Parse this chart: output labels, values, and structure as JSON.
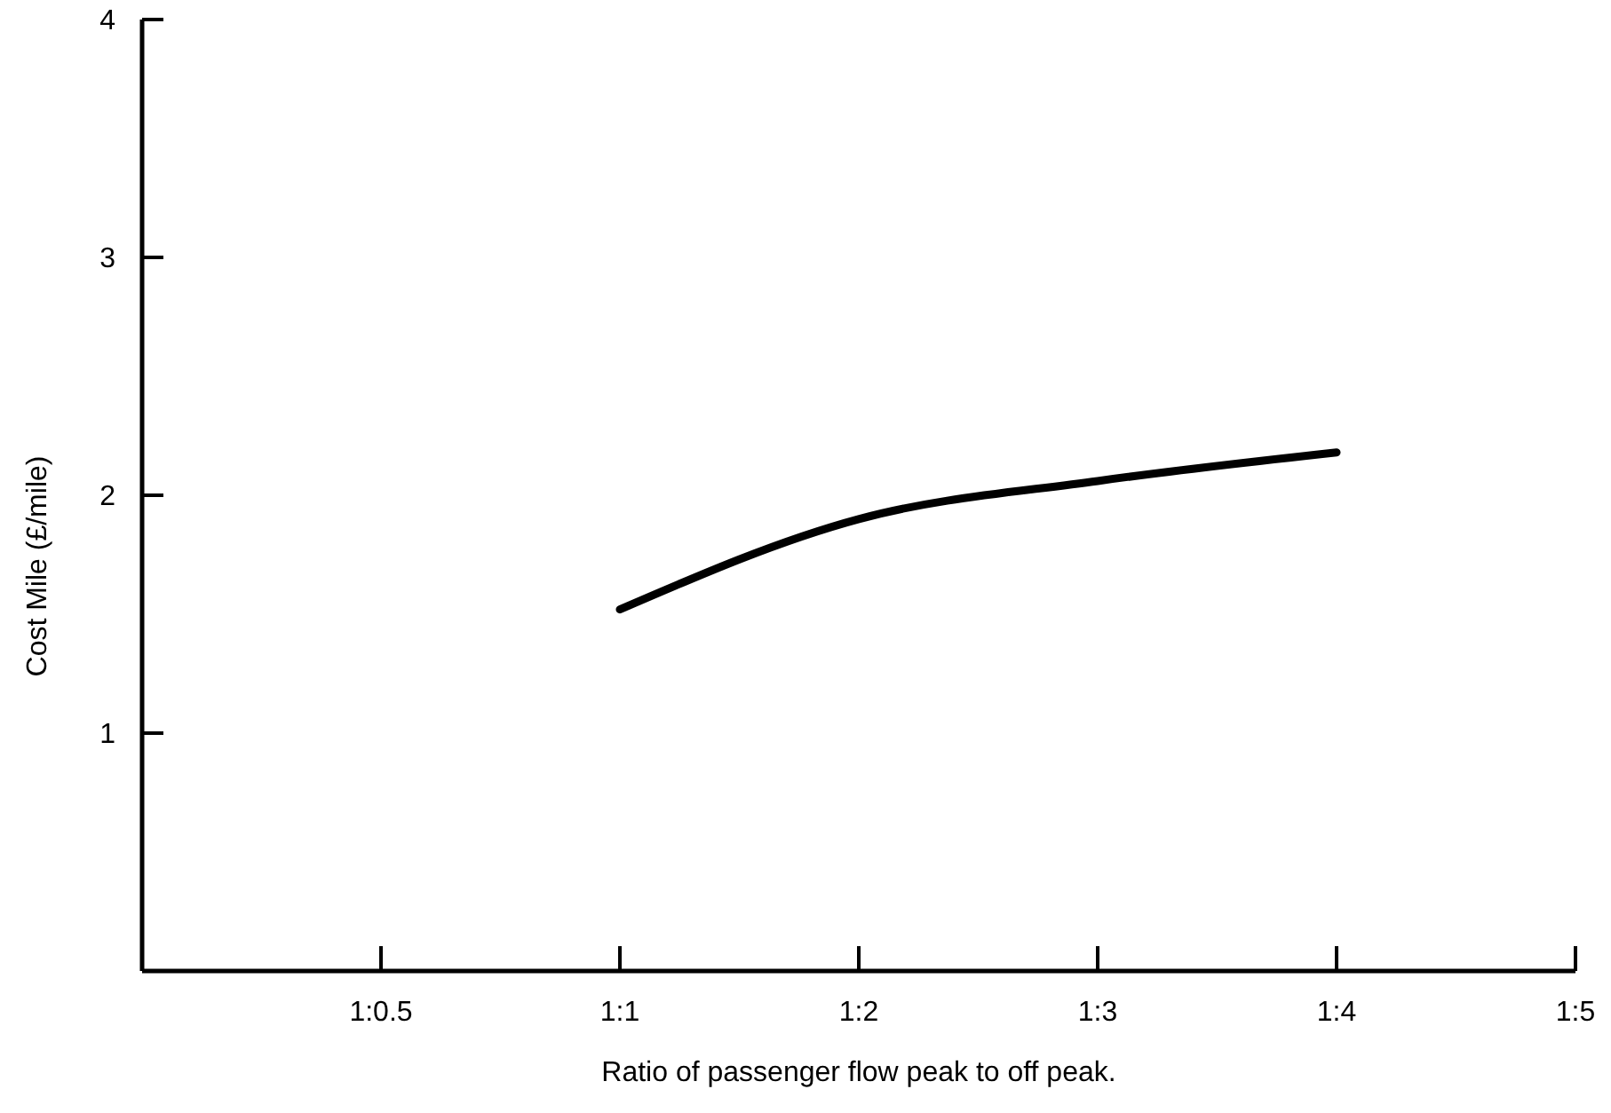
{
  "chart_data": {
    "type": "line",
    "xlabel": "Ratio of passenger flow peak to off peak.",
    "ylabel": "Cost Mile (£/mile)",
    "categories": [
      "1:0.5",
      "1:1",
      "1:2",
      "1:3",
      "1:4",
      "1:5"
    ],
    "ylim": [
      0,
      4
    ],
    "yticks": [
      1,
      2,
      3,
      4
    ],
    "grid": false,
    "marker": "none",
    "line_style": "solid",
    "series": [
      {
        "color": "#000000",
        "values": [
          null,
          1.52,
          1.9,
          2.06,
          2.18,
          null
        ]
      }
    ]
  }
}
